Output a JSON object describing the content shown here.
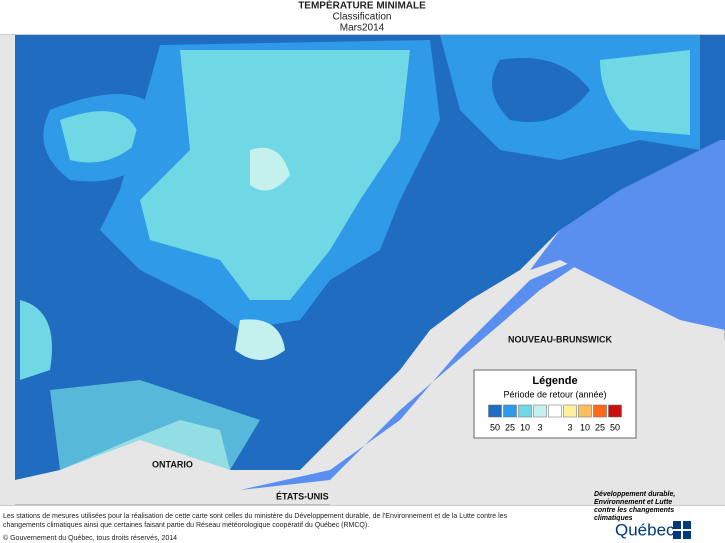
{
  "header": {
    "title": "TEMPÉRATURE MINIMALE",
    "subtitle": "Classification",
    "date": "Mars2014"
  },
  "map_labels": {
    "ontario": "ONTARIO",
    "usa": "ÉTATS-UNIS",
    "new_brunswick": "NOUVEAU-BRUNSWICK"
  },
  "legend": {
    "title": "Légende",
    "subtitle": "Période de retour (année)",
    "classes": [
      {
        "label": "50",
        "color": "#1f6cc0"
      },
      {
        "label": "25",
        "color": "#2f9ae8"
      },
      {
        "label": "10",
        "color": "#6fd8e4"
      },
      {
        "label": "3",
        "color": "#c4f0ee"
      },
      {
        "label": null,
        "color": "#ffffff"
      },
      {
        "label": "3",
        "color": "#fff0a0"
      },
      {
        "label": "10",
        "color": "#ffbf60"
      },
      {
        "label": "25",
        "color": "#ff6a1a"
      },
      {
        "label": "50",
        "color": "#c81010"
      }
    ]
  },
  "footer": {
    "note": [
      "Les stations de mesures utilisées pour la réalisation de cette carte sont celles du ministère du Développement durable, de l'Environnement et de la Lutte contre les",
      "changements climatiques ainsi que certaines faisant partie du Réseau météorologique coopératif du Québec (RMCQ)."
    ],
    "copyright": "© Gouvernement du Québec, tous droits réservés, 2014"
  },
  "logo": {
    "ministry": [
      "Développement durable,",
      "Environnement et Lutte",
      "contre les changements",
      "climatiques"
    ],
    "name": "Québec"
  }
}
